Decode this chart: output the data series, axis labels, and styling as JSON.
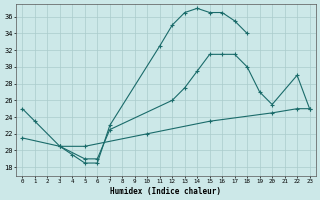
{
  "xlabel": "Humidex (Indice chaleur)",
  "bg_color": "#cce8e8",
  "grid_color": "#aacccc",
  "line_color": "#1a6b6a",
  "xlim": [
    -0.5,
    23.5
  ],
  "ylim": [
    17,
    37.5
  ],
  "yticks": [
    18,
    20,
    22,
    24,
    26,
    28,
    30,
    32,
    34,
    36
  ],
  "xticks": [
    0,
    1,
    2,
    3,
    4,
    5,
    6,
    7,
    8,
    9,
    10,
    11,
    12,
    13,
    14,
    15,
    16,
    17,
    18,
    19,
    20,
    21,
    22,
    23
  ],
  "curve1_x": [
    0,
    1,
    3,
    4,
    5,
    6,
    7,
    11,
    12,
    13,
    14,
    15,
    16,
    17,
    18
  ],
  "curve1_y": [
    25.0,
    23.5,
    20.5,
    19.5,
    18.5,
    18.5,
    23.0,
    32.5,
    35.0,
    36.5,
    37.0,
    36.5,
    36.5,
    35.5,
    34.0
  ],
  "curve2_x": [
    3,
    5,
    6,
    7,
    12,
    13,
    14,
    15,
    16,
    17,
    18,
    19,
    20,
    22,
    23
  ],
  "curve2_y": [
    20.5,
    19.0,
    19.0,
    22.5,
    26.0,
    27.5,
    29.5,
    31.5,
    31.5,
    31.5,
    30.0,
    27.0,
    25.5,
    29.0,
    25.0
  ],
  "curve3_x": [
    0,
    3,
    5,
    10,
    15,
    20,
    22,
    23
  ],
  "curve3_y": [
    21.5,
    20.5,
    20.5,
    22.0,
    23.5,
    24.5,
    25.0,
    25.0
  ]
}
